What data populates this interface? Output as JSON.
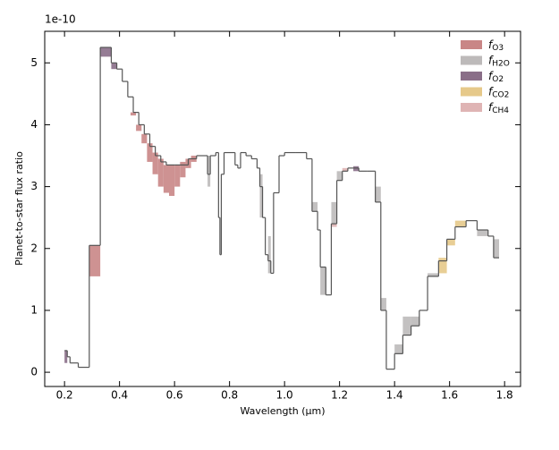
{
  "chart_data": {
    "type": "step",
    "xlabel": "Wavelength (µm)",
    "ylabel": "Planet-to-star flux ratio",
    "offset_text": "1e-10",
    "xlim": [
      0.128,
      1.858
    ],
    "ylim": [
      -0.23,
      5.51
    ],
    "xticks": [
      0.2,
      0.4,
      0.6,
      0.8,
      {
        "value": 1,
        "label": "1.0"
      },
      1.2,
      1.4,
      1.6,
      1.8
    ],
    "yticks": [
      0,
      1,
      2,
      3,
      4,
      5
    ],
    "line_color": "#555555",
    "x": [
      0.2,
      0.21,
      0.22,
      0.25,
      0.29,
      0.33,
      0.37,
      0.39,
      0.41,
      0.43,
      0.45,
      0.47,
      0.49,
      0.51,
      0.53,
      0.55,
      0.57,
      0.6,
      0.65,
      0.68,
      0.72,
      0.73,
      0.75,
      0.76,
      0.765,
      0.77,
      0.78,
      0.82,
      0.83,
      0.84,
      0.86,
      0.88,
      0.9,
      0.91,
      0.92,
      0.93,
      0.94,
      0.95,
      0.96,
      0.98,
      1.0,
      1.04,
      1.08,
      1.1,
      1.12,
      1.13,
      1.15,
      1.17,
      1.19,
      1.21,
      1.23,
      1.27,
      1.3,
      1.33,
      1.35,
      1.37,
      1.4,
      1.43,
      1.46,
      1.49,
      1.52,
      1.56,
      1.59,
      1.62,
      1.66,
      1.7,
      1.74,
      1.76,
      1.78
    ],
    "values": [
      0.35,
      0.25,
      0.15,
      0.08,
      2.05,
      5.25,
      5.0,
      4.9,
      4.7,
      4.45,
      4.2,
      4.0,
      3.85,
      3.65,
      3.5,
      3.4,
      3.35,
      3.35,
      3.45,
      3.5,
      3.2,
      3.5,
      3.55,
      2.5,
      1.9,
      3.2,
      3.55,
      3.35,
      3.3,
      3.55,
      3.5,
      3.45,
      3.3,
      3.0,
      2.5,
      1.9,
      1.8,
      1.6,
      2.9,
      3.5,
      3.55,
      3.55,
      3.45,
      2.6,
      2.3,
      1.7,
      1.25,
      2.4,
      3.1,
      3.25,
      3.3,
      3.25,
      3.25,
      2.75,
      1.0,
      0.05,
      0.3,
      0.6,
      0.75,
      1.0,
      1.55,
      1.8,
      2.15,
      2.35,
      2.45,
      2.3,
      2.2,
      1.85,
      1.85
    ],
    "series": [
      {
        "name": "f",
        "subscript": "O3",
        "color": "#c98686",
        "x0": [
          0.29,
          0.44,
          0.46,
          0.48,
          0.5,
          0.52,
          0.54,
          0.56,
          0.58,
          0.6,
          0.62,
          0.64,
          0.66
        ],
        "x1": [
          0.33,
          0.46,
          0.48,
          0.5,
          0.52,
          0.54,
          0.56,
          0.58,
          0.6,
          0.62,
          0.64,
          0.66,
          0.68
        ],
        "low": [
          1.55,
          4.15,
          3.9,
          3.7,
          3.4,
          3.2,
          3.0,
          2.9,
          2.85,
          3.0,
          3.15,
          3.3,
          3.4
        ],
        "high": [
          2.05,
          4.2,
          4.0,
          3.85,
          3.7,
          3.55,
          3.45,
          3.35,
          3.35,
          3.35,
          3.4,
          3.45,
          3.5
        ]
      },
      {
        "name": "f",
        "subscript": "H2O",
        "color": "#bdbaba",
        "x0": [
          0.72,
          0.91,
          0.94,
          1.1,
          1.13,
          1.17,
          1.19,
          1.33,
          1.35,
          1.4,
          1.43,
          1.46,
          1.52,
          1.7,
          1.76
        ],
        "x1": [
          0.73,
          0.92,
          0.95,
          1.12,
          1.15,
          1.19,
          1.21,
          1.35,
          1.37,
          1.43,
          1.46,
          1.49,
          1.56,
          1.74,
          1.78
        ],
        "low": [
          3.0,
          2.5,
          1.6,
          2.6,
          1.25,
          2.4,
          3.1,
          2.75,
          1.0,
          0.3,
          0.6,
          0.75,
          1.55,
          2.2,
          1.85
        ],
        "high": [
          3.5,
          3.2,
          2.2,
          2.75,
          1.7,
          2.75,
          3.25,
          3.0,
          1.2,
          0.45,
          0.9,
          0.9,
          1.6,
          2.3,
          2.15
        ]
      },
      {
        "name": "f",
        "subscript": "O2",
        "color": "#8a6e88",
        "x0": [
          0.2,
          0.33,
          0.37,
          1.25
        ],
        "x1": [
          0.21,
          0.37,
          0.39,
          1.27
        ],
        "low": [
          0.15,
          5.1,
          4.9,
          3.25
        ],
        "high": [
          0.35,
          5.25,
          5.0,
          3.33
        ]
      },
      {
        "name": "f",
        "subscript": "CO2",
        "color": "#e6c98a",
        "x0": [
          1.56,
          1.59,
          1.62
        ],
        "x1": [
          1.59,
          1.62,
          1.66
        ],
        "low": [
          1.6,
          2.05,
          2.35
        ],
        "high": [
          1.85,
          2.15,
          2.45
        ]
      },
      {
        "name": "f",
        "subscript": "CH4",
        "color": "#dfb4b4",
        "x0": [
          1.17,
          1.21
        ],
        "x1": [
          1.19,
          1.23
        ],
        "low": [
          2.35,
          3.25
        ],
        "high": [
          2.4,
          3.3
        ]
      }
    ]
  }
}
